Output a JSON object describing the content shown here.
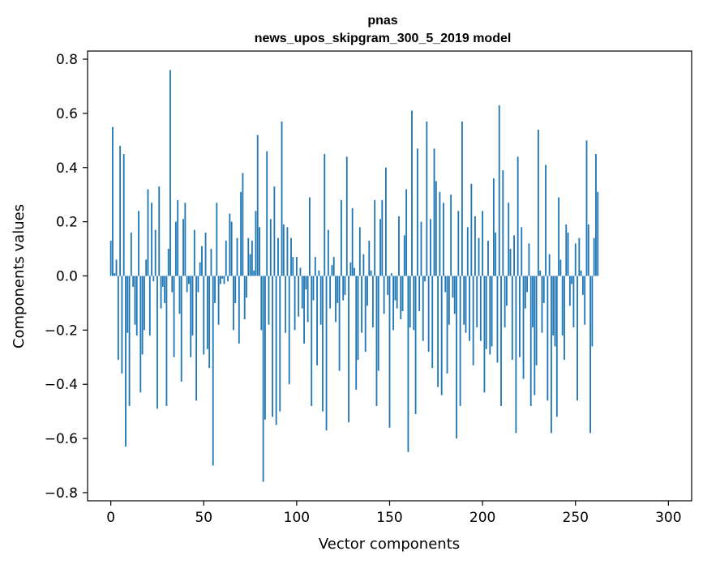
{
  "chart_data": {
    "type": "bar",
    "title": "pnas",
    "subtitle": "news_upos_skipgram_300_5_2019 model",
    "xlabel": "Vector components",
    "ylabel": "Components values",
    "xlim": [
      -12.5,
      312.5
    ],
    "ylim": [
      -0.83,
      0.83
    ],
    "xticks": [
      0,
      50,
      100,
      150,
      200,
      250,
      300
    ],
    "yticks": [
      -0.8,
      -0.6,
      -0.4,
      -0.2,
      0.0,
      0.2,
      0.4,
      0.6,
      0.8
    ],
    "ytick_labels": [
      "−0.8",
      "−0.6",
      "−0.4",
      "−0.2",
      "0.0",
      "0.2",
      "0.4",
      "0.6",
      "0.8"
    ],
    "grid": false,
    "color": "#1f77b4",
    "values": [
      0.13,
      0.55,
      0.01,
      0.06,
      -0.31,
      0.48,
      -0.36,
      0.45,
      -0.63,
      -0.21,
      -0.48,
      0.16,
      -0.04,
      -0.18,
      -0.22,
      0.24,
      -0.43,
      -0.29,
      -0.2,
      0.06,
      0.32,
      -0.22,
      0.27,
      -0.02,
      0.17,
      -0.49,
      0.33,
      -0.12,
      -0.04,
      -0.1,
      -0.48,
      0.1,
      0.76,
      -0.06,
      -0.3,
      0.2,
      0.28,
      -0.14,
      -0.39,
      0.21,
      0.27,
      -0.06,
      -0.03,
      -0.3,
      -0.22,
      0.17,
      -0.46,
      -0.06,
      0.05,
      0.11,
      -0.29,
      0.16,
      -0.27,
      -0.34,
      0.1,
      -0.7,
      -0.1,
      0.27,
      -0.18,
      -0.03,
      -0.01,
      -0.03,
      0.13,
      -0.02,
      0.23,
      0.2,
      -0.2,
      -0.1,
      0.14,
      -0.25,
      0.31,
      0.38,
      -0.16,
      -0.08,
      0.14,
      0.08,
      0.13,
      0.02,
      0.24,
      0.52,
      0.18,
      -0.2,
      -0.76,
      -0.53,
      0.46,
      -0.18,
      0.21,
      -0.52,
      0.33,
      -0.55,
      0.14,
      -0.5,
      0.57,
      0.19,
      -0.21,
      0.18,
      -0.4,
      0.14,
      0.07,
      -0.2,
      0.07,
      -0.15,
      0.03,
      -0.12,
      -0.25,
      -0.05,
      -0.17,
      0.29,
      -0.48,
      -0.09,
      0.07,
      -0.33,
      0.02,
      -0.18,
      -0.5,
      0.45,
      -0.57,
      0.17,
      -0.12,
      0.04,
      0.07,
      -0.17,
      -0.1,
      -0.35,
      0.28,
      -0.09,
      -0.07,
      0.44,
      -0.54,
      0.05,
      0.25,
      0.03,
      -0.42,
      -0.31,
      0.18,
      -0.21,
      0.08,
      -0.28,
      -0.11,
      0.13,
      0.02,
      -0.19,
      0.28,
      -0.48,
      -0.35,
      0.21,
      0.28,
      -0.14,
      0.4,
      -0.07,
      -0.56,
      0.01,
      -0.2,
      -0.09,
      -0.12,
      0.22,
      -0.16,
      -0.13,
      0.15,
      0.32,
      -0.65,
      -0.19,
      0.61,
      -0.2,
      -0.51,
      0.47,
      -0.13,
      0.2,
      -0.24,
      -0.02,
      0.57,
      -0.28,
      0.21,
      -0.34,
      0.47,
      0.35,
      -0.41,
      0.31,
      -0.44,
      0.27,
      -0.06,
      -0.36,
      -0.18,
      0.3,
      -0.08,
      -0.14,
      -0.6,
      0.24,
      -0.48,
      0.57,
      -0.18,
      -0.21,
      0.18,
      -0.24,
      0.34,
      -0.33,
      0.22,
      -0.19,
      0.14,
      -0.24,
      0.24,
      -0.43,
      -0.27,
      0.13,
      -0.29,
      -0.26,
      0.36,
      0.16,
      -0.32,
      0.63,
      -0.48,
      0.39,
      -0.19,
      -0.11,
      0.27,
      0.1,
      -0.31,
      0.15,
      -0.58,
      0.44,
      -0.3,
      0.18,
      -0.38,
      -0.12,
      -0.06,
      0.12,
      -0.48,
      -0.19,
      -0.44,
      -0.33,
      0.54,
      0.02,
      -0.21,
      -0.1,
      0.41,
      -0.46,
      0.08,
      -0.58,
      -0.22,
      -0.26,
      -0.52,
      0.29,
      0.06,
      -0.22,
      -0.31,
      0.19,
      0.16,
      -0.11,
      -0.03,
      -0.19,
      0.12,
      -0.46,
      0.14,
      0.02,
      -0.07,
      -0.18,
      0.5,
      0.19,
      -0.58,
      -0.26,
      0.14,
      0.45,
      0.31
    ]
  }
}
